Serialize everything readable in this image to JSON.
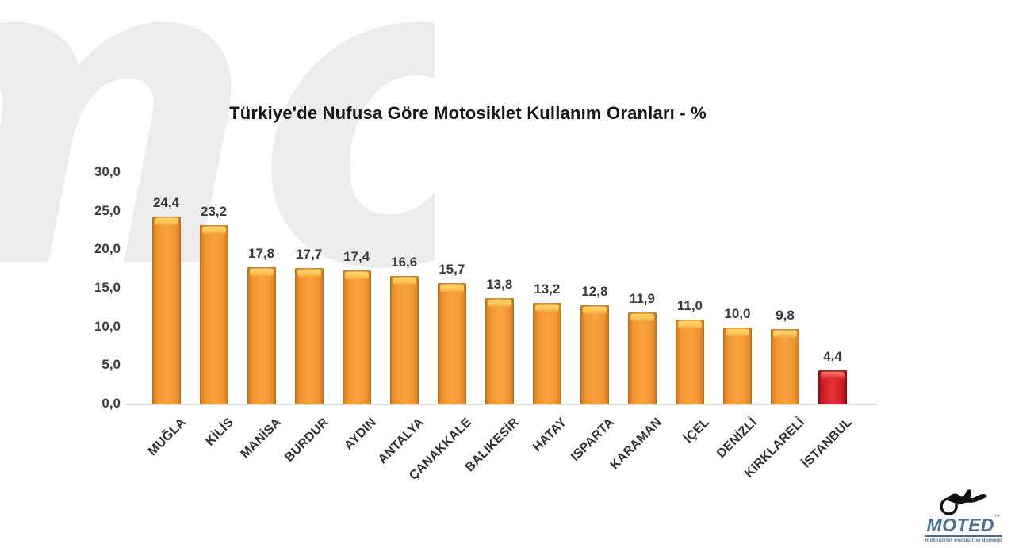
{
  "page": {
    "background": "#ffffff",
    "watermark_text": "mo",
    "watermark_color": "#ececec"
  },
  "chart_data": {
    "type": "bar",
    "title": "Türkiye'de Nufusa Göre Motosiklet Kullanım Oranları - %",
    "categories": [
      "MUĞLA",
      "KİLİS",
      "MANİSA",
      "BURDUR",
      "AYDIN",
      "ANTALYA",
      "ÇANAKKALE",
      "BALIKESİR",
      "HATAY",
      "ISPARTA",
      "KARAMAN",
      "İÇEL",
      "DENİZLİ",
      "KIRKLARELİ",
      "İSTANBUL"
    ],
    "values": [
      24.4,
      23.2,
      17.8,
      17.7,
      17.4,
      16.6,
      15.7,
      13.8,
      13.2,
      12.8,
      11.9,
      11.0,
      10.0,
      9.8,
      4.4
    ],
    "value_labels": [
      "24,4",
      "23,2",
      "17,8",
      "17,7",
      "17,4",
      "16,6",
      "15,7",
      "13,8",
      "13,2",
      "12,8",
      "11,9",
      "11,0",
      "10,0",
      "9,8",
      "4,4"
    ],
    "xlabel": "",
    "ylabel": "",
    "ylim": [
      0,
      30
    ],
    "y_ticks": [
      "30,0",
      "25,0",
      "20,0",
      "15,0",
      "10,0",
      "5,0",
      "0,0"
    ],
    "y_tick_values": [
      30,
      25,
      20,
      15,
      10,
      5,
      0
    ],
    "grid": false,
    "legend": false,
    "bar_color": "#f09431",
    "highlight_color": "#d21e24",
    "highlight_index": 14
  },
  "logo": {
    "brand": "MOTED",
    "trademark": "™",
    "tagline": "motosiklet endüstrisi derneği",
    "brand_color": "#4a6d96"
  }
}
